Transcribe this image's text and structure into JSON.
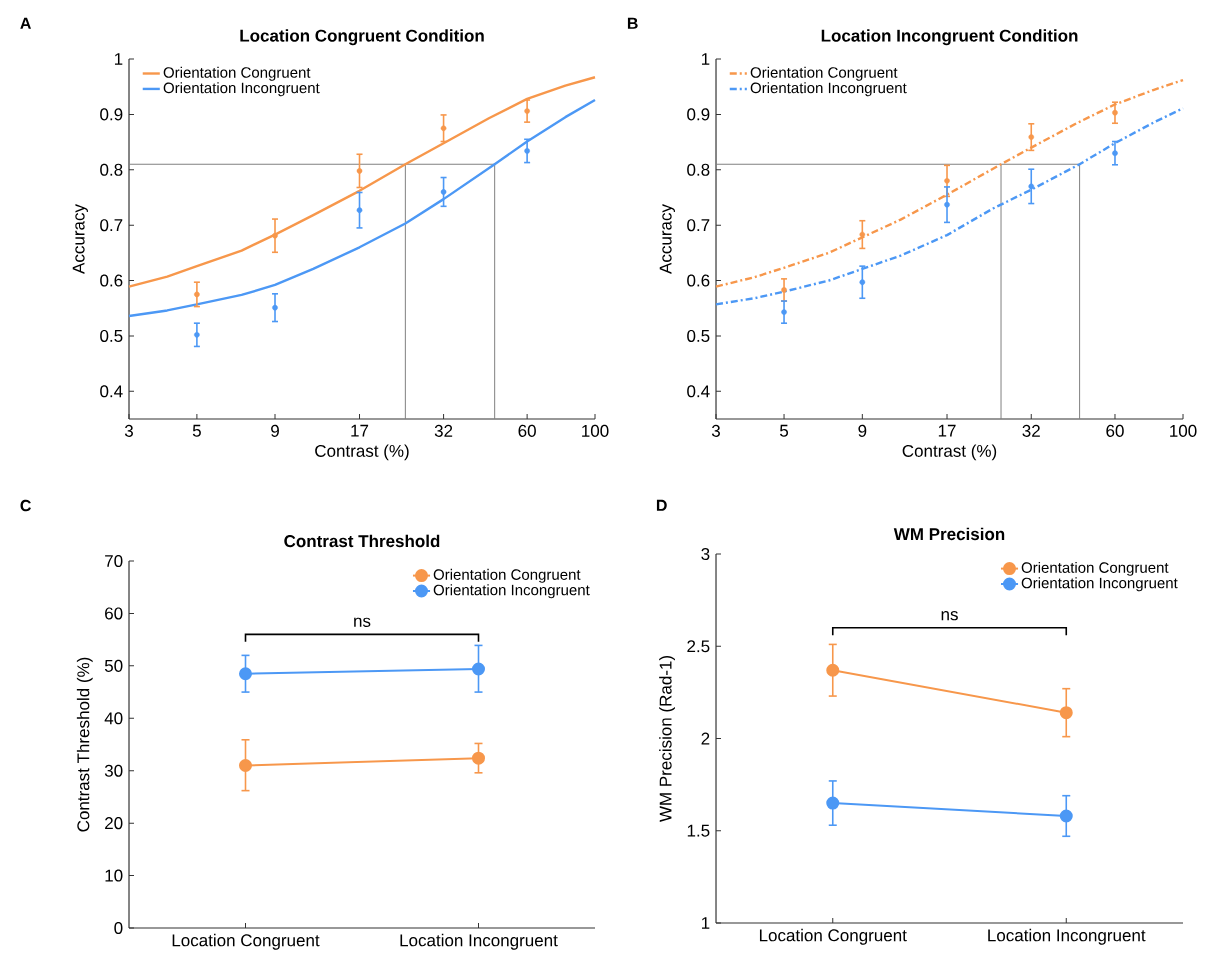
{
  "chart_data": [
    {
      "type": "scatter",
      "title": "Location Congruent Condition",
      "xlabel": "Contrast (%)",
      "ylabel": "Accuracy",
      "log": "x",
      "marker": "circle",
      "legend": "top left",
      "x": [
        5,
        9,
        17,
        32,
        60
      ],
      "xlim": [
        3,
        100
      ],
      "xticks": [
        3,
        5,
        9,
        17,
        32,
        60,
        100
      ],
      "ylim": [
        0.35,
        1
      ],
      "yticks": [
        0.4,
        0.5,
        0.6,
        0.7,
        0.8,
        0.9,
        1
      ],
      "annotations": [
        "A"
      ],
      "ref_lines": [
        {
          "axis": "y",
          "value": 0.81,
          "color": "#808080"
        },
        {
          "axis": "x",
          "value": 24,
          "color": "#808080"
        },
        {
          "axis": "x",
          "value": 47,
          "color": "#808080"
        }
      ],
      "series": [
        {
          "name": "Orientation Congruent",
          "type": "line",
          "marker": "none",
          "line_style": "solid",
          "color": "#f7974b",
          "x": [
            3,
            4,
            5,
            7,
            9,
            12,
            17,
            24,
            32,
            45,
            60,
            80,
            100
          ],
          "values": [
            0.589,
            0.607,
            0.626,
            0.654,
            0.683,
            0.718,
            0.762,
            0.81,
            0.848,
            0.893,
            0.928,
            0.952,
            0.967
          ]
        },
        {
          "name": "Orientation Incongruent",
          "type": "line",
          "marker": "none",
          "line_style": "solid",
          "color": "#4c98f5",
          "x": [
            3,
            4,
            5,
            7,
            9,
            12,
            17,
            24,
            32,
            47,
            60,
            80,
            100
          ],
          "values": [
            0.536,
            0.546,
            0.557,
            0.574,
            0.592,
            0.621,
            0.66,
            0.703,
            0.747,
            0.81,
            0.851,
            0.895,
            0.926
          ]
        },
        {
          "color": "#f7974b",
          "values": [
            0.575,
            0.681,
            0.798,
            0.875,
            0.906
          ],
          "errors": [
            0.022,
            0.03,
            0.03,
            0.024,
            0.02
          ]
        },
        {
          "color": "#4c98f5",
          "values": [
            0.502,
            0.551,
            0.727,
            0.76,
            0.834
          ],
          "errors": [
            0.021,
            0.025,
            0.032,
            0.026,
            0.021
          ]
        }
      ]
    },
    {
      "type": "scatter",
      "title": "Location Incongruent Condition",
      "xlabel": "Contrast (%)",
      "ylabel": "Accuracy",
      "log": "x",
      "marker": "circle",
      "legend": "top left",
      "x": [
        5,
        9,
        17,
        32,
        60
      ],
      "xlim": [
        3,
        100
      ],
      "xticks": [
        3,
        5,
        9,
        17,
        32,
        60,
        100
      ],
      "ylim": [
        0.35,
        1
      ],
      "yticks": [
        0.4,
        0.5,
        0.6,
        0.7,
        0.8,
        0.9,
        1
      ],
      "annotations": [
        "B"
      ],
      "ref_lines": [
        {
          "axis": "y",
          "value": 0.81,
          "color": "#808080"
        },
        {
          "axis": "x",
          "value": 25.5,
          "color": "#808080"
        },
        {
          "axis": "x",
          "value": 46,
          "color": "#808080"
        }
      ],
      "series": [
        {
          "name": "Orientation Congruent",
          "type": "line",
          "marker": "none",
          "line_style": "dashdot",
          "color": "#f7974b",
          "x": [
            3,
            4,
            5,
            7,
            9,
            12,
            17,
            25.5,
            32,
            45,
            60,
            80,
            100
          ],
          "values": [
            0.589,
            0.606,
            0.623,
            0.65,
            0.678,
            0.71,
            0.755,
            0.81,
            0.84,
            0.884,
            0.918,
            0.944,
            0.962
          ]
        },
        {
          "name": "Orientation Incongruent",
          "type": "line",
          "marker": "none",
          "line_style": "dashdot",
          "color": "#4c98f5",
          "x": [
            3,
            4,
            5,
            7,
            9,
            12,
            17,
            24,
            32,
            46,
            60,
            80,
            100
          ],
          "values": [
            0.557,
            0.568,
            0.58,
            0.6,
            0.621,
            0.645,
            0.682,
            0.73,
            0.764,
            0.81,
            0.848,
            0.885,
            0.911
          ]
        },
        {
          "color": "#f7974b",
          "values": [
            0.583,
            0.683,
            0.78,
            0.859,
            0.903
          ],
          "errors": [
            0.02,
            0.025,
            0.028,
            0.024,
            0.019
          ]
        },
        {
          "color": "#4c98f5",
          "values": [
            0.543,
            0.597,
            0.737,
            0.77,
            0.83
          ],
          "errors": [
            0.02,
            0.029,
            0.032,
            0.031,
            0.021
          ]
        }
      ]
    },
    {
      "type": "line",
      "title": "Contrast Threshold",
      "ylabel": "Contrast Threshold (%)",
      "marker": "circle",
      "line_style": "solid",
      "legend": "top right",
      "categories": [
        "Location Congruent",
        "Location Incongruent"
      ],
      "ylim": [
        0,
        70
      ],
      "yticks": [
        0,
        10,
        20,
        30,
        40,
        50,
        60,
        70
      ],
      "annotations": [
        "C",
        "ns"
      ],
      "series": [
        {
          "name": "Orientation Congruent",
          "color": "#f7974b",
          "values": [
            31.0,
            32.4
          ],
          "errors": [
            [
              26.2,
              35.9
            ],
            [
              29.6,
              35.2
            ]
          ]
        },
        {
          "name": "Orientation Incongruent",
          "color": "#4c98f5",
          "values": [
            48.5,
            49.4
          ],
          "errors": [
            [
              45.0,
              52.0
            ],
            [
              45.0,
              53.9
            ]
          ]
        }
      ]
    },
    {
      "type": "line",
      "title": "WM Precision",
      "ylabel": "WM Precision (Rad-1)",
      "marker": "circle",
      "line_style": "solid",
      "legend": "top right",
      "categories": [
        "Location Congruent",
        "Location Incongruent"
      ],
      "ylim": [
        1,
        3
      ],
      "yticks": [
        1,
        1.5,
        2,
        2.5,
        3
      ],
      "annotations": [
        "D",
        "ns"
      ],
      "series": [
        {
          "name": "Orientation Congruent",
          "color": "#f7974b",
          "values": [
            2.37,
            2.14
          ],
          "errors": [
            [
              2.23,
              2.51
            ],
            [
              2.01,
              2.27
            ]
          ]
        },
        {
          "name": "Orientation Incongruent",
          "color": "#4c98f5",
          "values": [
            1.65,
            1.58
          ],
          "errors": [
            [
              1.53,
              1.77
            ],
            [
              1.47,
              1.69
            ]
          ]
        }
      ]
    }
  ]
}
